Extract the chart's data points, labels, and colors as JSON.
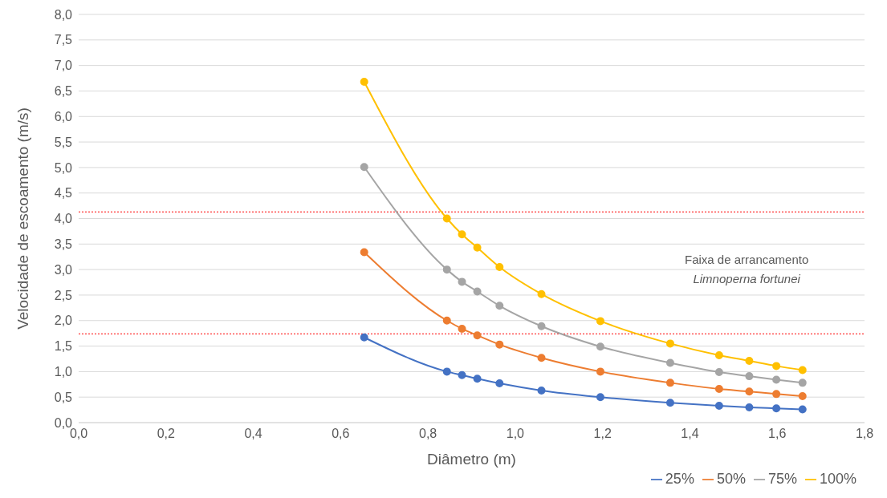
{
  "chart_data": {
    "type": "line",
    "xlabel": "Diâmetro (m)",
    "ylabel": "Velocidade de escoamento (m/s)",
    "x": [
      0.654,
      0.8435,
      0.878,
      0.913,
      0.964,
      1.06,
      1.195,
      1.355,
      1.467,
      1.536,
      1.598,
      1.658
    ],
    "series": [
      {
        "name": "25%",
        "color": "#4472c4",
        "values": [
          1.67,
          1.0,
          0.93,
          0.86,
          0.77,
          0.63,
          0.5,
          0.39,
          0.33,
          0.3,
          0.28,
          0.26
        ]
      },
      {
        "name": "50%",
        "color": "#ed7d31",
        "values": [
          3.34,
          2.0,
          1.84,
          1.71,
          1.53,
          1.27,
          1.0,
          0.78,
          0.66,
          0.61,
          0.56,
          0.52
        ]
      },
      {
        "name": "75%",
        "color": "#a5a5a5",
        "values": [
          5.01,
          3.0,
          2.76,
          2.57,
          2.29,
          1.89,
          1.49,
          1.17,
          0.99,
          0.91,
          0.84,
          0.78
        ]
      },
      {
        "name": "100%",
        "color": "#ffc000",
        "values": [
          6.68,
          4.0,
          3.69,
          3.43,
          3.05,
          2.52,
          1.99,
          1.55,
          1.32,
          1.21,
          1.11,
          1.03
        ]
      }
    ],
    "xlim": [
      0,
      1.8
    ],
    "xticks": [
      {
        "value": 0,
        "label": "0,0"
      },
      {
        "value": 0.2,
        "label": "0,2"
      },
      {
        "value": 0.4,
        "label": "0,4"
      },
      {
        "value": 0.6,
        "label": "0,6"
      },
      {
        "value": 0.8,
        "label": "0,8"
      },
      {
        "value": 1.0,
        "label": "1,0"
      },
      {
        "value": 1.2,
        "label": "1,2"
      },
      {
        "value": 1.4,
        "label": "1,4"
      },
      {
        "value": 1.6,
        "label": "1,6"
      },
      {
        "value": 1.8,
        "label": "1,8"
      }
    ],
    "ylim": [
      0,
      8
    ],
    "yticks": [
      {
        "value": 0,
        "label": "0,0"
      },
      {
        "value": 0.5,
        "label": "0,5"
      },
      {
        "value": 1,
        "label": "1,0"
      },
      {
        "value": 1.5,
        "label": "1,5"
      },
      {
        "value": 2,
        "label": "2,0"
      },
      {
        "value": 2.5,
        "label": "2,5"
      },
      {
        "value": 3,
        "label": "3,0"
      },
      {
        "value": 3.5,
        "label": "3,5"
      },
      {
        "value": 4,
        "label": "4,0"
      },
      {
        "value": 4.5,
        "label": "4,5"
      },
      {
        "value": 5,
        "label": "5,0"
      },
      {
        "value": 5.5,
        "label": "5,5"
      },
      {
        "value": 6,
        "label": "6,0"
      },
      {
        "value": 6.5,
        "label": "6,5"
      },
      {
        "value": 7,
        "label": "7,0"
      },
      {
        "value": 7.5,
        "label": "7,5"
      },
      {
        "value": 8,
        "label": "8,0"
      }
    ],
    "ref_lines": [
      {
        "axis": "y",
        "value": 4.13,
        "color": "#ff0000",
        "line_style": "dotted"
      },
      {
        "axis": "y",
        "value": 1.74,
        "color": "#ff0000",
        "line_style": "dotted"
      }
    ],
    "annotations": [
      "Faixa de arrancamento",
      "Limnoperna fortunei"
    ],
    "grid": "y",
    "legend": "bottom right",
    "marker": "circle",
    "line_style": "solid"
  }
}
